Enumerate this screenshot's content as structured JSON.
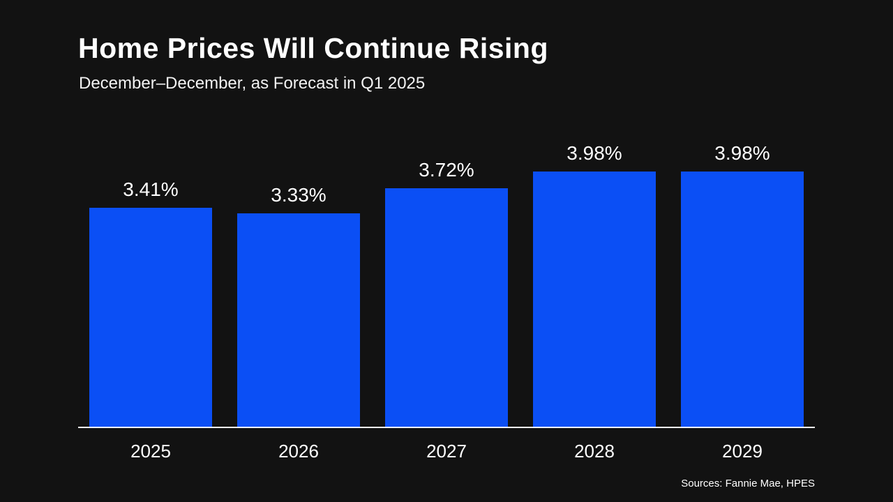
{
  "header": {
    "title": "Home Prices Will Continue Rising",
    "subtitle": "December–December, as Forecast in Q1 2025"
  },
  "footer": {
    "source": "Sources: Fannie Mae, HPES"
  },
  "colors": {
    "background": "#121212",
    "bar": "#0b4ff5",
    "text": "#ffffff"
  },
  "chart_data": {
    "type": "bar",
    "title": "Home Prices Will Continue Rising",
    "subtitle": "December–December, as Forecast in Q1 2025",
    "categories": [
      "2025",
      "2026",
      "2027",
      "2028",
      "2029"
    ],
    "values": [
      3.41,
      3.33,
      3.72,
      3.98,
      3.98
    ],
    "data_labels": [
      "3.41%",
      "3.33%",
      "3.72%",
      "3.98%",
      "3.98%"
    ],
    "xlabel": "",
    "ylabel": "",
    "ylim": [
      0,
      4.3
    ],
    "grid": false,
    "legend": false,
    "source": "Sources: Fannie Mae, HPES"
  }
}
